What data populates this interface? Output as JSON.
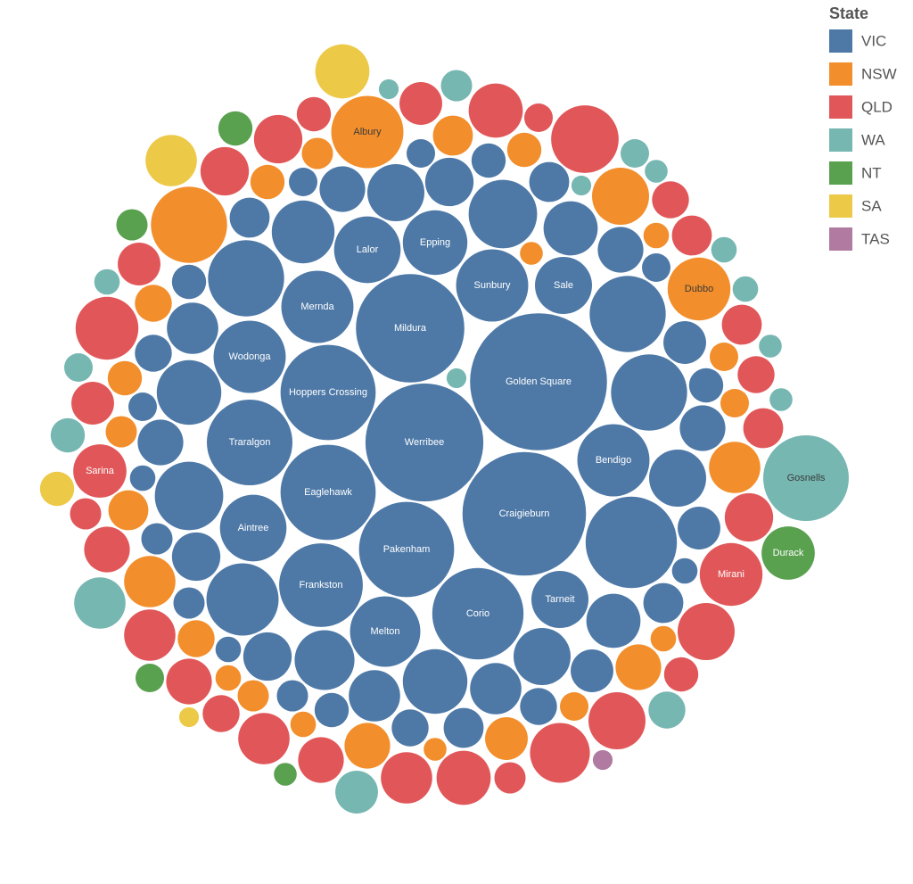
{
  "chart_data": {
    "type": "packed_bubble",
    "legend_title": "State",
    "legend": "top-right",
    "series": [
      {
        "name": "VIC",
        "color": "#4e79a7",
        "labels": [
          "Werribee",
          "Golden Square",
          "Craigieburn",
          "Mildura",
          "Pakenham",
          "Hoppers Crossing",
          "Eaglehawk",
          "Corio",
          "Traralgon",
          "Frankston",
          "Sunbury",
          "Mernda",
          "Bendigo",
          "Wodonga",
          "Melton",
          "Aintree",
          "Lalor",
          "Epping",
          "Tarneit",
          "Sale",
          null,
          null,
          null,
          null,
          null,
          null,
          null,
          null,
          null,
          null,
          null,
          null,
          null,
          null,
          null,
          null,
          null,
          null,
          null,
          null,
          null,
          null,
          null,
          null,
          null,
          null,
          null,
          null,
          null,
          null,
          null,
          null,
          null,
          null,
          null,
          null,
          null,
          null,
          null,
          null,
          null,
          null,
          null,
          null,
          null,
          null,
          null,
          null,
          null,
          null
        ],
        "values": [
          427,
          576,
          469,
          361,
          278,
          278,
          278,
          256,
          225,
          215,
          160,
          160,
          160,
          160,
          152,
          136,
          136,
          128,
          100,
          100,
          256,
          178,
          178,
          178,
          160,
          144,
          144,
          128,
          128,
          121,
          110,
          100,
          100,
          100,
          90,
          90,
          81,
          81,
          81,
          72,
          72,
          72,
          64,
          64,
          64,
          64,
          56,
          56,
          56,
          49,
          49,
          49,
          49,
          42,
          42,
          42,
          36,
          36,
          36,
          36,
          30,
          30,
          30,
          25,
          25,
          25,
          25,
          20,
          20,
          20
        ]
      },
      {
        "name": "NSW",
        "color": "#f28e2b",
        "labels": [
          "Albury",
          null,
          "Dubbo",
          null,
          null,
          null,
          null,
          null,
          null,
          null,
          null,
          null,
          null,
          null,
          null,
          null,
          null,
          null,
          null,
          null,
          null,
          null,
          null,
          null,
          null,
          null,
          null,
          null
        ],
        "values": [
          160,
          178,
          121,
          100,
          81,
          81,
          64,
          64,
          56,
          49,
          49,
          42,
          42,
          36,
          36,
          36,
          30,
          30,
          30,
          25,
          25,
          25,
          20,
          20,
          20,
          20,
          16,
          16
        ]
      },
      {
        "name": "QLD",
        "color": "#e15759",
        "labels": [
          "Mirani",
          "Sarina",
          null,
          null,
          null,
          null,
          null,
          null,
          null,
          null,
          null,
          null,
          null,
          null,
          null,
          null,
          null,
          null,
          null,
          null,
          null,
          null,
          null,
          null,
          null,
          null,
          null,
          null,
          null,
          null,
          null,
          null
        ],
        "values": [
          121,
          87,
          140,
          121,
          110,
          100,
          100,
          90,
          90,
          81,
          81,
          81,
          72,
          72,
          72,
          64,
          64,
          64,
          56,
          56,
          56,
          49,
          49,
          49,
          42,
          42,
          42,
          36,
          36,
          30,
          30,
          25
        ]
      },
      {
        "name": "WA",
        "color": "#76b7b2",
        "labels": [
          "Gosnells",
          null,
          null,
          null,
          null,
          null,
          null,
          null,
          null,
          null,
          null,
          null,
          null,
          null,
          null,
          null,
          null
        ],
        "values": [
          225,
          81,
          56,
          42,
          36,
          30,
          25,
          25,
          20,
          20,
          20,
          16,
          16,
          16,
          12,
          12,
          12
        ]
      },
      {
        "name": "NT",
        "color": "#59a14f",
        "labels": [
          "Durack",
          null,
          null,
          null,
          null
        ],
        "values": [
          87,
          36,
          30,
          25,
          16
        ]
      },
      {
        "name": "SA",
        "color": "#edc948",
        "labels": [
          null,
          null,
          null,
          null
        ],
        "values": [
          90,
          81,
          36,
          12
        ]
      },
      {
        "name": "TAS",
        "color": "#b07aa1",
        "labels": [
          null
        ],
        "values": [
          12
        ]
      }
    ]
  }
}
